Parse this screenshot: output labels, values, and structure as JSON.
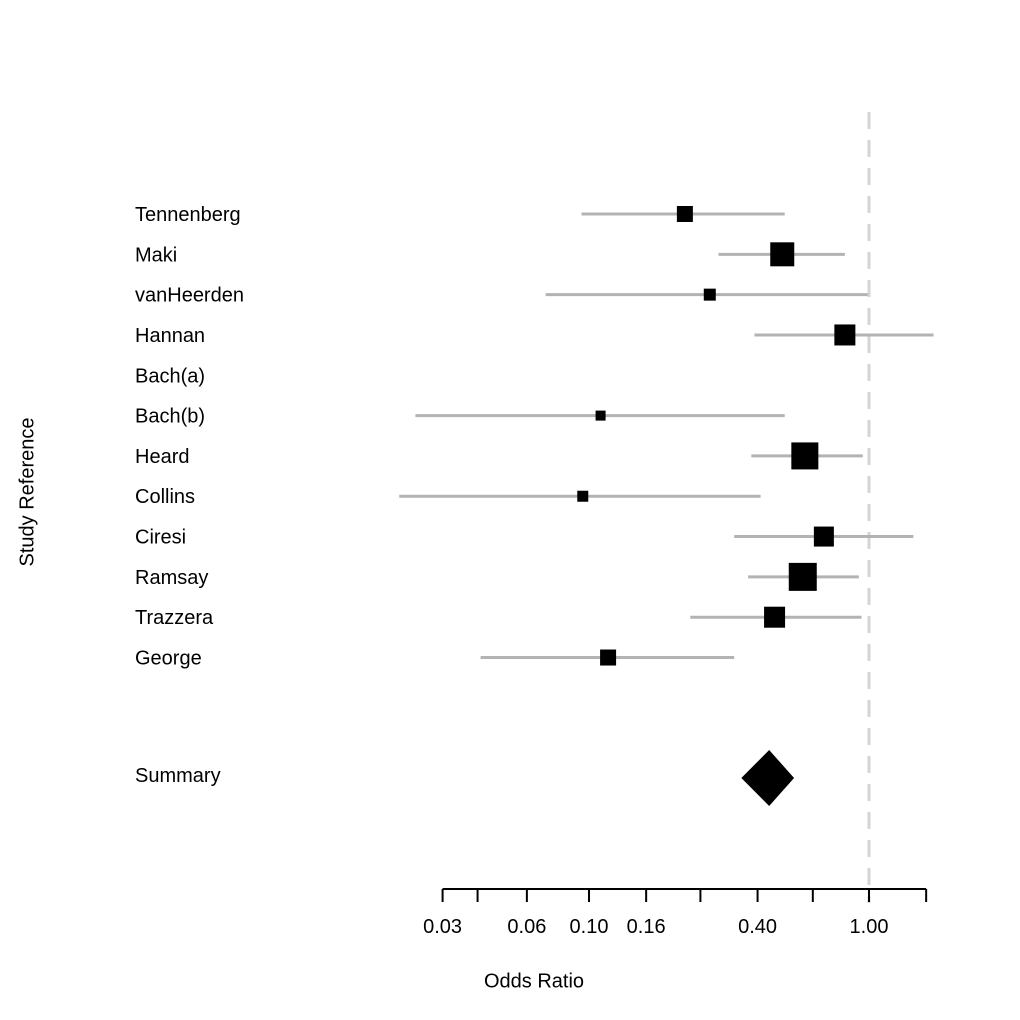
{
  "chart_data": {
    "type": "forest",
    "title": "",
    "xlabel": "Odds Ratio",
    "ylabel": "Study Reference",
    "x_scale": "log",
    "xlim": [
      0.03,
      1.6
    ],
    "reference_line": 1.0,
    "grid": false,
    "ticks": [
      {
        "value": 0.03,
        "label": "0.03"
      },
      {
        "value": 0.04,
        "label": ""
      },
      {
        "value": 0.06,
        "label": "0.06"
      },
      {
        "value": 0.1,
        "label": "0.10"
      },
      {
        "value": 0.16,
        "label": "0.16"
      },
      {
        "value": 0.25,
        "label": ""
      },
      {
        "value": 0.4,
        "label": "0.40"
      },
      {
        "value": 0.63,
        "label": ""
      },
      {
        "value": 1.0,
        "label": "1.00"
      },
      {
        "value": 1.6,
        "label": ""
      }
    ],
    "studies": [
      {
        "name": "Tennenberg",
        "or": 0.22,
        "ci_low": 0.094,
        "ci_high": 0.5,
        "box_size": 16
      },
      {
        "name": "Maki",
        "or": 0.49,
        "ci_low": 0.29,
        "ci_high": 0.82,
        "box_size": 24
      },
      {
        "name": "vanHeerden",
        "or": 0.27,
        "ci_low": 0.07,
        "ci_high": 0.99,
        "box_size": 12
      },
      {
        "name": "Hannan",
        "or": 0.82,
        "ci_low": 0.39,
        "ci_high": 1.7,
        "box_size": 21
      },
      {
        "name": "Bach(a)",
        "or": null,
        "ci_low": null,
        "ci_high": null,
        "box_size": 0
      },
      {
        "name": "Bach(b)",
        "or": 0.11,
        "ci_low": 0.024,
        "ci_high": 0.5,
        "box_size": 10
      },
      {
        "name": "Heard",
        "or": 0.59,
        "ci_low": 0.38,
        "ci_high": 0.95,
        "box_size": 27
      },
      {
        "name": "Collins",
        "or": 0.095,
        "ci_low": 0.021,
        "ci_high": 0.41,
        "box_size": 11
      },
      {
        "name": "Ciresi",
        "or": 0.69,
        "ci_low": 0.33,
        "ci_high": 1.44,
        "box_size": 20
      },
      {
        "name": "Ramsay",
        "or": 0.58,
        "ci_low": 0.37,
        "ci_high": 0.92,
        "box_size": 28
      },
      {
        "name": "Trazzera",
        "or": 0.46,
        "ci_low": 0.23,
        "ci_high": 0.94,
        "box_size": 21
      },
      {
        "name": "George",
        "or": 0.117,
        "ci_low": 0.041,
        "ci_high": 0.33,
        "box_size": 16
      }
    ],
    "summary": {
      "name": "Summary",
      "or": 0.44,
      "ci_low": 0.35,
      "ci_high": 0.54
    },
    "colors": {
      "box": "#000000",
      "ci_line": "#b3b3b3",
      "reference_line": "#d4d4d4",
      "axis": "#000000",
      "text": "#000000",
      "background": "#ffffff"
    }
  }
}
